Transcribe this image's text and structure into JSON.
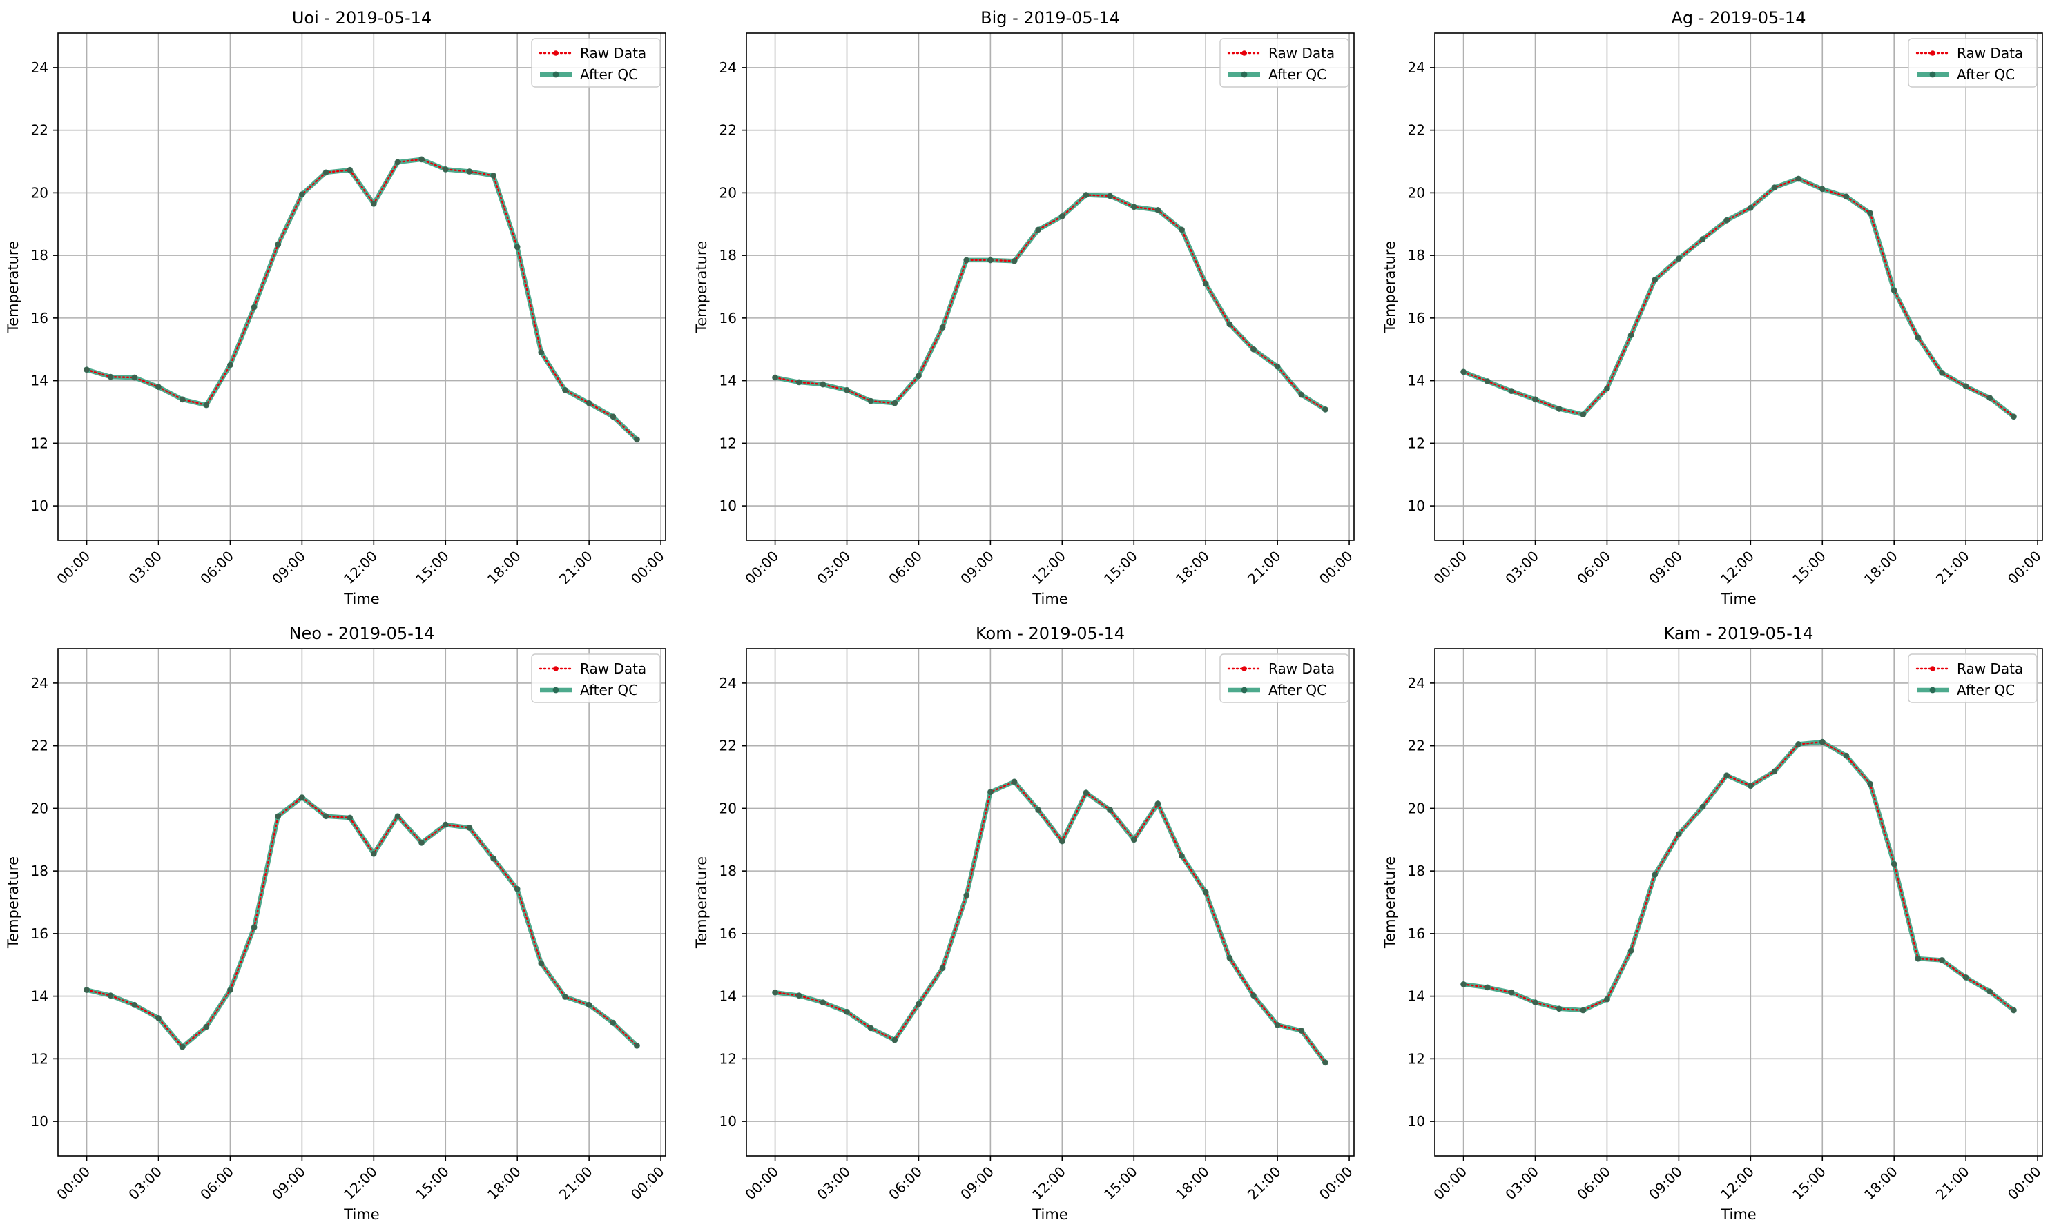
{
  "figure": {
    "common": {
      "xlabel": "Time",
      "ylabel": "Temperature",
      "xticks": [
        "00:00",
        "03:00",
        "06:00",
        "09:00",
        "12:00",
        "15:00",
        "18:00",
        "21:00",
        "00:00"
      ],
      "yticks": [
        10,
        12,
        14,
        16,
        18,
        20,
        22,
        24
      ],
      "ylim": [
        8.9,
        25.1
      ],
      "xlim_hours": [
        -1.2,
        24.2
      ],
      "grid": true,
      "legend_placement": "upper right",
      "legend": [
        "Raw Data",
        "After QC"
      ],
      "colors": {
        "raw": "#e8000b",
        "qc": "#2f9c7a",
        "qc_marker": "#2a6b55",
        "grid": "#b0b0b0"
      }
    }
  },
  "chart_data": [
    {
      "type": "line",
      "title": "Uoi - 2019-05-14",
      "x_hours": [
        0,
        1,
        2,
        3,
        4,
        5,
        6,
        7,
        8,
        9,
        10,
        11,
        12,
        13,
        14,
        15,
        16,
        17,
        18,
        19,
        20,
        21,
        22,
        23
      ],
      "series": [
        {
          "name": "Raw Data",
          "values": [
            14.35,
            14.12,
            14.1,
            13.8,
            13.4,
            13.22,
            14.5,
            16.35,
            18.35,
            19.95,
            20.65,
            20.73,
            19.65,
            20.98,
            21.07,
            20.75,
            20.68,
            20.55,
            18.27,
            14.9,
            13.7,
            13.28,
            12.85,
            12.12
          ]
        },
        {
          "name": "After QC",
          "values": [
            14.35,
            14.12,
            14.1,
            13.8,
            13.4,
            13.22,
            14.5,
            16.35,
            18.35,
            19.95,
            20.65,
            20.73,
            19.65,
            20.98,
            21.07,
            20.75,
            20.68,
            20.55,
            18.27,
            14.9,
            13.7,
            13.28,
            12.85,
            12.12
          ]
        }
      ]
    },
    {
      "type": "line",
      "title": "Big - 2019-05-14",
      "x_hours": [
        0,
        1,
        2,
        3,
        4,
        5,
        6,
        7,
        8,
        9,
        10,
        11,
        12,
        13,
        14,
        15,
        16,
        17,
        18,
        19,
        20,
        21,
        22,
        23
      ],
      "series": [
        {
          "name": "Raw Data",
          "values": [
            14.1,
            13.95,
            13.88,
            13.7,
            13.35,
            13.28,
            14.15,
            15.7,
            17.85,
            17.85,
            17.82,
            18.82,
            19.25,
            19.93,
            19.9,
            19.55,
            19.45,
            18.82,
            17.1,
            15.8,
            15.0,
            14.45,
            13.55,
            13.08
          ]
        },
        {
          "name": "After QC",
          "values": [
            14.1,
            13.95,
            13.88,
            13.7,
            13.35,
            13.28,
            14.15,
            15.7,
            17.85,
            17.85,
            17.82,
            18.82,
            19.25,
            19.93,
            19.9,
            19.55,
            19.45,
            18.82,
            17.1,
            15.8,
            15.0,
            14.45,
            13.55,
            13.08
          ]
        }
      ]
    },
    {
      "type": "line",
      "title": "Ag - 2019-05-14",
      "x_hours": [
        0,
        1,
        2,
        3,
        4,
        5,
        6,
        7,
        8,
        9,
        10,
        11,
        12,
        13,
        14,
        15,
        16,
        17,
        18,
        19,
        20,
        21,
        22,
        23
      ],
      "series": [
        {
          "name": "Raw Data",
          "values": [
            14.28,
            13.98,
            13.67,
            13.4,
            13.1,
            12.92,
            13.75,
            15.45,
            17.22,
            17.9,
            18.52,
            19.12,
            19.52,
            20.17,
            20.45,
            20.12,
            19.88,
            19.35,
            16.88,
            15.38,
            14.25,
            13.82,
            13.45,
            12.85
          ]
        },
        {
          "name": "After QC",
          "values": [
            14.28,
            13.98,
            13.67,
            13.4,
            13.1,
            12.92,
            13.75,
            15.45,
            17.22,
            17.9,
            18.52,
            19.12,
            19.52,
            20.17,
            20.45,
            20.12,
            19.88,
            19.35,
            16.88,
            15.38,
            14.25,
            13.82,
            13.45,
            12.85
          ]
        }
      ]
    },
    {
      "type": "line",
      "title": "Neo - 2019-05-14",
      "x_hours": [
        0,
        1,
        2,
        3,
        4,
        5,
        6,
        7,
        8,
        9,
        10,
        11,
        12,
        13,
        14,
        15,
        16,
        17,
        18,
        19,
        20,
        21,
        22,
        23
      ],
      "series": [
        {
          "name": "Raw Data",
          "values": [
            14.2,
            14.02,
            13.72,
            13.3,
            12.38,
            13.02,
            14.2,
            16.2,
            19.75,
            20.35,
            19.75,
            19.7,
            18.55,
            19.75,
            18.9,
            19.48,
            19.38,
            18.4,
            17.42,
            15.05,
            13.98,
            13.72,
            13.15,
            12.42
          ]
        },
        {
          "name": "After QC",
          "values": [
            14.2,
            14.02,
            13.72,
            13.3,
            12.38,
            13.02,
            14.2,
            16.2,
            19.75,
            20.35,
            19.75,
            19.7,
            18.55,
            19.75,
            18.9,
            19.48,
            19.38,
            18.4,
            17.42,
            15.05,
            13.98,
            13.72,
            13.15,
            12.42
          ]
        }
      ]
    },
    {
      "type": "line",
      "title": "Kom - 2019-05-14",
      "x_hours": [
        0,
        1,
        2,
        3,
        4,
        5,
        6,
        7,
        8,
        9,
        10,
        11,
        12,
        13,
        14,
        15,
        16,
        17,
        18,
        19,
        20,
        21,
        22,
        23
      ],
      "series": [
        {
          "name": "Raw Data",
          "values": [
            14.12,
            14.02,
            13.8,
            13.5,
            12.98,
            12.6,
            13.75,
            14.9,
            17.22,
            20.52,
            20.85,
            19.95,
            18.95,
            20.5,
            19.95,
            19.0,
            20.15,
            18.48,
            17.32,
            15.22,
            14.02,
            13.08,
            12.9,
            11.88
          ]
        },
        {
          "name": "After QC",
          "values": [
            14.12,
            14.02,
            13.8,
            13.5,
            12.98,
            12.6,
            13.75,
            14.9,
            17.22,
            20.52,
            20.85,
            19.95,
            18.95,
            20.5,
            19.95,
            19.0,
            20.15,
            18.48,
            17.32,
            15.22,
            14.02,
            13.08,
            12.9,
            11.88
          ]
        }
      ]
    },
    {
      "type": "line",
      "title": "Kam - 2019-05-14",
      "x_hours": [
        0,
        1,
        2,
        3,
        4,
        5,
        6,
        7,
        8,
        9,
        10,
        11,
        12,
        13,
        14,
        15,
        16,
        17,
        18,
        19,
        20,
        21,
        22,
        23
      ],
      "series": [
        {
          "name": "Raw Data",
          "values": [
            14.38,
            14.28,
            14.12,
            13.8,
            13.6,
            13.55,
            13.9,
            15.45,
            17.88,
            19.18,
            20.05,
            21.05,
            20.72,
            21.18,
            22.05,
            22.12,
            21.68,
            20.78,
            18.22,
            15.2,
            15.15,
            14.6,
            14.15,
            13.55
          ]
        },
        {
          "name": "After QC",
          "values": [
            14.38,
            14.28,
            14.12,
            13.8,
            13.6,
            13.55,
            13.9,
            15.45,
            17.88,
            19.18,
            20.05,
            21.05,
            20.72,
            21.18,
            22.05,
            22.12,
            21.68,
            20.78,
            18.22,
            15.2,
            15.15,
            14.6,
            14.15,
            13.55
          ]
        }
      ]
    }
  ]
}
